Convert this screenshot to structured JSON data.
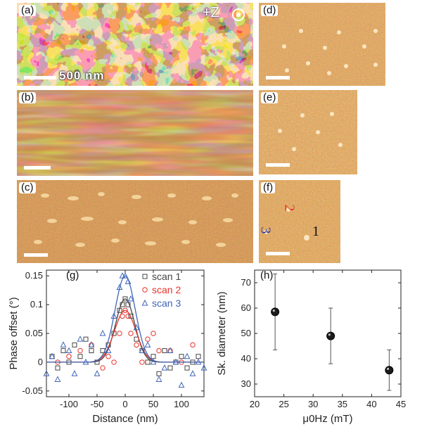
{
  "panels": {
    "a": {
      "label": "(a)",
      "scalebar": "500 nm",
      "z_label": "+Z"
    },
    "b": {
      "label": "(b)"
    },
    "c": {
      "label": "(c)"
    },
    "d": {
      "label": "(d)"
    },
    "e": {
      "label": "(e)"
    },
    "f": {
      "label": "(f)",
      "markers": [
        "1",
        "2",
        "3"
      ],
      "marker_colors": [
        "#111111",
        "#e8322a",
        "#2f3da3"
      ]
    }
  },
  "colors": {
    "mfm_dark": "#3a1506",
    "mfm_mid": "#a4541f",
    "mfm_light": "#f2c98a"
  },
  "chart_data": [
    {
      "id": "g",
      "panel_label": "(g)",
      "type": "scatter",
      "xlabel": "Distance (nm)",
      "ylabel": "Phase offset (°)",
      "xlim": [
        -140,
        140
      ],
      "ylim": [
        -0.06,
        0.16
      ],
      "xticks": [
        -100,
        -50,
        0,
        50,
        100
      ],
      "xtick_labels": [
        "-100",
        "-50",
        "0",
        "50",
        "100"
      ],
      "yticks": [
        -0.05,
        0,
        0.05,
        0.1,
        0.15
      ],
      "ytick_labels": [
        "-0.05",
        "0",
        "0.05",
        "0.1",
        "0.15"
      ],
      "legend_position": "top-right",
      "series": [
        {
          "name": "scan 1",
          "marker": "square",
          "color": "#444444",
          "x": [
            -130,
            -120,
            -110,
            -100,
            -90,
            -80,
            -70,
            -60,
            -50,
            -40,
            -30,
            -20,
            -10,
            -5,
            0,
            5,
            10,
            20,
            30,
            40,
            50,
            60,
            70,
            80,
            90,
            100,
            110,
            120,
            130
          ],
          "y": [
            0.01,
            -0.01,
            0.02,
            0.0,
            0.03,
            0.01,
            0.04,
            0.02,
            0.0,
            0.02,
            0.03,
            0.05,
            0.09,
            0.1,
            0.11,
            0.1,
            0.08,
            0.04,
            0.02,
            0.0,
            0.01,
            -0.02,
            0.02,
            -0.01,
            0.0,
            0.01,
            -0.01,
            0.0,
            0.01
          ]
        },
        {
          "name": "scan 2",
          "marker": "circle",
          "color": "#e8322a",
          "x": [
            -120,
            -100,
            -80,
            -60,
            -40,
            -30,
            -20,
            -10,
            -5,
            0,
            5,
            10,
            20,
            30,
            40,
            50,
            60,
            80,
            100,
            120
          ],
          "y": [
            0.0,
            0.01,
            0.02,
            0.03,
            -0.01,
            0.01,
            0.0,
            0.05,
            0.08,
            0.09,
            0.08,
            0.05,
            0.03,
            0.0,
            0.04,
            0.05,
            0.02,
            0.02,
            0.0,
            0.03
          ]
        },
        {
          "name": "scan 3",
          "marker": "triangle",
          "color": "#3f66b8",
          "x": [
            -140,
            -130,
            -120,
            -110,
            -100,
            -90,
            -80,
            -70,
            -60,
            -50,
            -40,
            -30,
            -20,
            -10,
            -5,
            0,
            5,
            10,
            20,
            30,
            40,
            50,
            60,
            70,
            80,
            90,
            100,
            110,
            120,
            130,
            140
          ],
          "y": [
            -0.02,
            0.01,
            -0.03,
            0.03,
            0.02,
            -0.02,
            0.04,
            0.0,
            0.03,
            -0.02,
            0.05,
            0.02,
            0.08,
            0.13,
            0.15,
            0.15,
            0.14,
            0.11,
            0.06,
            0.02,
            0.03,
            0.0,
            -0.03,
            -0.01,
            0.02,
            0.0,
            -0.04,
            0.01,
            -0.02,
            0.0,
            -0.01
          ]
        }
      ]
    },
    {
      "id": "h",
      "panel_label": "(h)",
      "type": "scatter",
      "xlabel": "μ0Hz (mT)",
      "ylabel": "Sk. diameter (nm)",
      "xlim": [
        20,
        45
      ],
      "ylim": [
        25,
        75
      ],
      "xticks": [
        20,
        25,
        30,
        35,
        40,
        45
      ],
      "xtick_labels": [
        "20",
        "25",
        "30",
        "35",
        "40",
        "45"
      ],
      "yticks": [
        30,
        40,
        50,
        60,
        70
      ],
      "ytick_labels": [
        "30",
        "40",
        "50",
        "60",
        "70"
      ],
      "x": [
        23.5,
        33,
        43
      ],
      "y": [
        58.5,
        49,
        35.5
      ],
      "yerr": [
        15,
        11,
        8
      ]
    }
  ]
}
